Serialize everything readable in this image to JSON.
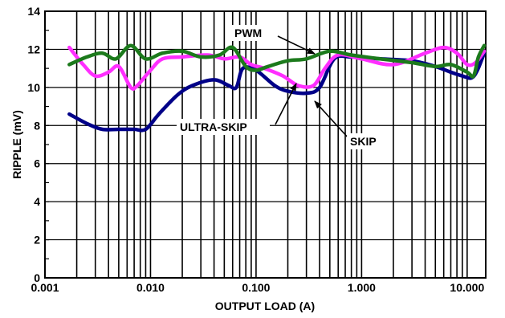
{
  "chart_data": {
    "type": "line",
    "xlabel": "OUTPUT LOAD (A)",
    "ylabel": "RIPPLE (mV)",
    "x_scale": "log",
    "xlim": [
      0.001,
      15
    ],
    "ylim": [
      0,
      14
    ],
    "grid": true,
    "x_ticks": [
      0.001,
      0.01,
      0.1,
      1,
      10
    ],
    "x_tick_labels": [
      "0.001",
      "0.010",
      "0.100",
      "1.000",
      "10.000"
    ],
    "y_ticks": [
      0,
      2,
      4,
      6,
      8,
      10,
      12,
      14
    ],
    "y_tick_labels": [
      "0",
      "2",
      "4",
      "6",
      "8",
      "10",
      "12",
      "14"
    ],
    "series": [
      {
        "name": "PWM",
        "color": "#1c7a1c",
        "points": [
          [
            0.0017,
            11.2
          ],
          [
            0.0025,
            11.6
          ],
          [
            0.0035,
            11.8
          ],
          [
            0.0047,
            11.5
          ],
          [
            0.0065,
            12.2
          ],
          [
            0.009,
            11.5
          ],
          [
            0.013,
            11.8
          ],
          [
            0.02,
            11.9
          ],
          [
            0.03,
            11.6
          ],
          [
            0.045,
            11.7
          ],
          [
            0.06,
            12.1
          ],
          [
            0.08,
            11.1
          ],
          [
            0.1,
            10.9
          ],
          [
            0.13,
            11.1
          ],
          [
            0.2,
            11.4
          ],
          [
            0.3,
            11.5
          ],
          [
            0.5,
            11.9
          ],
          [
            0.8,
            11.7
          ],
          [
            1.5,
            11.5
          ],
          [
            3,
            11.3
          ],
          [
            5,
            11.1
          ],
          [
            7,
            11.2
          ],
          [
            10,
            10.8
          ],
          [
            11.5,
            10.6
          ],
          [
            12.8,
            11.6
          ],
          [
            14.5,
            12.2
          ]
        ]
      },
      {
        "name": "SKIP",
        "color": "#ff2eff",
        "points": [
          [
            0.0017,
            12.1
          ],
          [
            0.0023,
            11.2
          ],
          [
            0.003,
            10.6
          ],
          [
            0.004,
            10.8
          ],
          [
            0.005,
            11.1
          ],
          [
            0.0065,
            10.0
          ],
          [
            0.0075,
            10.1
          ],
          [
            0.01,
            10.9
          ],
          [
            0.013,
            11.5
          ],
          [
            0.02,
            11.6
          ],
          [
            0.035,
            11.7
          ],
          [
            0.05,
            11.5
          ],
          [
            0.07,
            11.6
          ],
          [
            0.09,
            11.2
          ],
          [
            0.12,
            11.0
          ],
          [
            0.18,
            10.6
          ],
          [
            0.25,
            10.1
          ],
          [
            0.35,
            10.1
          ],
          [
            0.45,
            11.0
          ],
          [
            0.6,
            11.7
          ],
          [
            1,
            11.5
          ],
          [
            2,
            11.2
          ],
          [
            4,
            11.8
          ],
          [
            6,
            12.1
          ],
          [
            8,
            11.8
          ],
          [
            10,
            11.2
          ],
          [
            12,
            11.3
          ],
          [
            14.5,
            11.9
          ]
        ]
      },
      {
        "name": "ULTRA-SKIP",
        "color": "#000088",
        "points": [
          [
            0.0017,
            8.6
          ],
          [
            0.0025,
            8.1
          ],
          [
            0.0035,
            7.8
          ],
          [
            0.005,
            7.8
          ],
          [
            0.007,
            7.8
          ],
          [
            0.009,
            7.8
          ],
          [
            0.012,
            8.6
          ],
          [
            0.018,
            9.6
          ],
          [
            0.025,
            10.1
          ],
          [
            0.04,
            10.4
          ],
          [
            0.055,
            10.1
          ],
          [
            0.065,
            10.0
          ],
          [
            0.075,
            11.0
          ],
          [
            0.1,
            10.9
          ],
          [
            0.15,
            10.1
          ],
          [
            0.2,
            9.8
          ],
          [
            0.3,
            9.7
          ],
          [
            0.4,
            10.0
          ],
          [
            0.55,
            11.5
          ],
          [
            0.8,
            11.6
          ],
          [
            1.5,
            11.5
          ],
          [
            3,
            11.4
          ],
          [
            5,
            11.1
          ],
          [
            7,
            10.8
          ],
          [
            9,
            10.6
          ],
          [
            11,
            10.5
          ],
          [
            12.5,
            10.9
          ],
          [
            14.5,
            11.8
          ]
        ]
      }
    ],
    "annotations": [
      "PWM",
      "SKIP",
      "ULTRA-SKIP"
    ]
  }
}
